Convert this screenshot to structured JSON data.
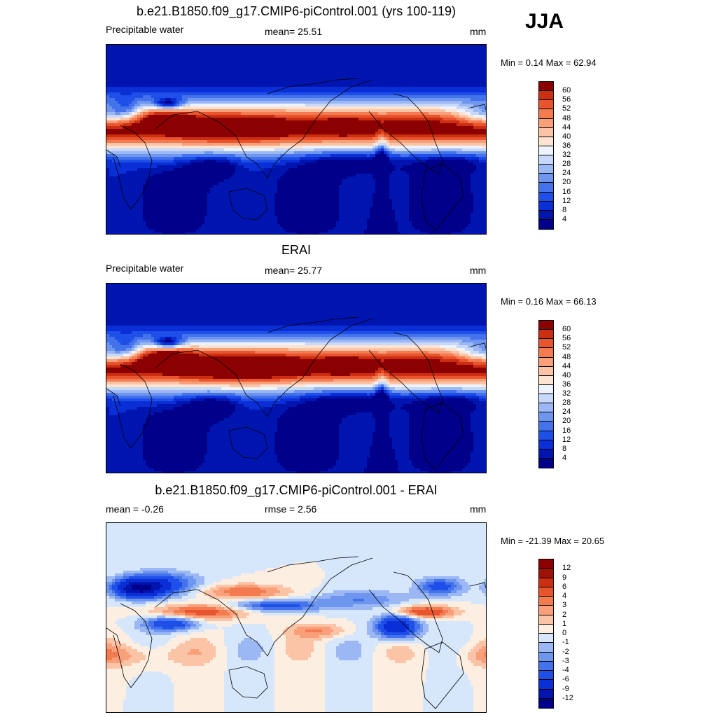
{
  "season": "JJA",
  "panels": [
    {
      "title": "b.e21.B1850.f09_g17.CMIP6-piControl.001 (yrs 100-119)",
      "left_label": "Precipitable water",
      "center_label": "mean=  25.51",
      "right_label": "mm",
      "minmax": "Min =   0.14 Max =  62.94"
    },
    {
      "title": "ERAI",
      "left_label": "Precipitable water",
      "center_label": "mean=  25.77",
      "right_label": "mm",
      "minmax": "Min =   0.16 Max =  66.13"
    },
    {
      "title": "b.e21.B1850.f09_g17.CMIP6-piControl.001 - ERAI",
      "left_label": "mean =  -0.26",
      "center_label": "rmse =   2.56",
      "right_label": "mm",
      "minmax": "Min = -21.39 Max =  20.65"
    }
  ],
  "chart_data": [
    {
      "type": "heatmap",
      "title": "b.e21.B1850.f09_g17.CMIP6-piControl.001 (yrs 100-119)",
      "variable": "Precipitable water",
      "units": "mm",
      "mean": 25.51,
      "min": 0.14,
      "max": 62.94,
      "colorbar_levels": [
        4,
        8,
        12,
        16,
        20,
        24,
        28,
        32,
        36,
        40,
        44,
        48,
        52,
        56,
        60
      ],
      "colors": [
        "#00008b",
        "#0015b0",
        "#0a2fd6",
        "#1e4fe8",
        "#4472ea",
        "#6f96ef",
        "#9bb8f4",
        "#c7d8fa",
        "#eef4ff",
        "#fde4d2",
        "#fcc4a6",
        "#f9a07a",
        "#f47a50",
        "#e8542e",
        "#cc2e12",
        "#8b0000"
      ]
    },
    {
      "type": "heatmap",
      "title": "ERAI",
      "variable": "Precipitable water",
      "units": "mm",
      "mean": 25.77,
      "min": 0.16,
      "max": 66.13,
      "colorbar_levels": [
        4,
        8,
        12,
        16,
        20,
        24,
        28,
        32,
        36,
        40,
        44,
        48,
        52,
        56,
        60
      ],
      "colors": [
        "#00008b",
        "#0015b0",
        "#0a2fd6",
        "#1e4fe8",
        "#4472ea",
        "#6f96ef",
        "#9bb8f4",
        "#c7d8fa",
        "#eef4ff",
        "#fde4d2",
        "#fcc4a6",
        "#f9a07a",
        "#f47a50",
        "#e8542e",
        "#cc2e12",
        "#8b0000"
      ]
    },
    {
      "type": "heatmap",
      "title": "b.e21.B1850.f09_g17.CMIP6-piControl.001 - ERAI",
      "units": "mm",
      "mean": -0.26,
      "rmse": 2.56,
      "min": -21.39,
      "max": 20.65,
      "colorbar_levels": [
        -12,
        -9,
        -6,
        -4,
        -3,
        -2,
        -1,
        0,
        1,
        2,
        3,
        4,
        6,
        9,
        12
      ],
      "colors": [
        "#00008b",
        "#0015b0",
        "#0a2fd6",
        "#1e4fe8",
        "#4472ea",
        "#6f96ef",
        "#9bb8f4",
        "#d6e6fb",
        "#fdeee2",
        "#fcc4a6",
        "#f9a07a",
        "#f47a50",
        "#e8542e",
        "#cc2e12",
        "#a01208",
        "#8b0000"
      ]
    }
  ]
}
